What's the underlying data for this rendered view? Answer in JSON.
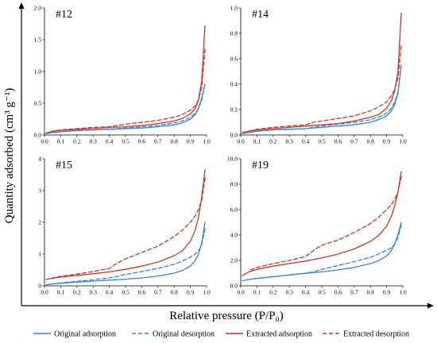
{
  "x_label": "Relative pressure (P/P₀)",
  "y_label": "Quantity adsorbed (cm³ g⁻¹)",
  "chart_data": [
    {
      "type": "line",
      "title": "#12",
      "xlim": [
        0,
        1.0
      ],
      "ylim": [
        0,
        2.0
      ],
      "xticks": [
        "0.0",
        "0.1",
        "0.2",
        "0.3",
        "0.4",
        "0.5",
        "0.6",
        "0.7",
        "0.8",
        "0.9",
        "1.0"
      ],
      "yticks": [
        "0.0",
        "0.5",
        "1.0",
        "1.5",
        "2.0"
      ],
      "series": [
        {
          "name": "Original adsorption",
          "color": "#3A7FD5",
          "dash": false,
          "x": [
            0.01,
            0.05,
            0.1,
            0.2,
            0.3,
            0.4,
            0.5,
            0.6,
            0.7,
            0.8,
            0.85,
            0.9,
            0.93,
            0.95,
            0.97,
            0.99
          ],
          "y": [
            0.02,
            0.04,
            0.05,
            0.07,
            0.08,
            0.09,
            0.1,
            0.11,
            0.13,
            0.16,
            0.19,
            0.25,
            0.32,
            0.42,
            0.58,
            0.8
          ]
        },
        {
          "name": "Original desorption",
          "color": "#3A7FD5",
          "dash": true,
          "x": [
            0.99,
            0.97,
            0.95,
            0.93,
            0.9,
            0.85,
            0.8,
            0.7,
            0.6,
            0.5,
            0.45,
            0.4,
            0.3,
            0.2,
            0.1,
            0.05
          ],
          "y": [
            0.8,
            0.55,
            0.42,
            0.34,
            0.28,
            0.22,
            0.19,
            0.15,
            0.13,
            0.11,
            0.1,
            0.09,
            0.08,
            0.07,
            0.05,
            0.04
          ]
        },
        {
          "name": "Extracted adsorption",
          "color": "#C0392B",
          "dash": false,
          "x": [
            0.01,
            0.05,
            0.1,
            0.2,
            0.3,
            0.4,
            0.5,
            0.6,
            0.7,
            0.8,
            0.85,
            0.9,
            0.93,
            0.95,
            0.97,
            0.99
          ],
          "y": [
            0.03,
            0.06,
            0.07,
            0.09,
            0.1,
            0.12,
            0.13,
            0.15,
            0.18,
            0.22,
            0.26,
            0.33,
            0.42,
            0.55,
            0.85,
            1.72
          ]
        },
        {
          "name": "Extracted desorption",
          "color": "#C0392B",
          "dash": true,
          "x": [
            0.99,
            0.97,
            0.95,
            0.93,
            0.9,
            0.85,
            0.8,
            0.7,
            0.6,
            0.5,
            0.45,
            0.4,
            0.3,
            0.2,
            0.1,
            0.05
          ],
          "y": [
            1.35,
            0.75,
            0.55,
            0.46,
            0.39,
            0.32,
            0.28,
            0.23,
            0.2,
            0.17,
            0.15,
            0.13,
            0.12,
            0.1,
            0.08,
            0.06
          ]
        }
      ]
    },
    {
      "type": "line",
      "title": "#14",
      "xlim": [
        0,
        1.0
      ],
      "ylim": [
        0,
        1.0
      ],
      "xticks": [
        "0.0",
        "0.1",
        "0.2",
        "0.3",
        "0.4",
        "0.5",
        "0.6",
        "0.7",
        "0.8",
        "0.9",
        "1.0"
      ],
      "yticks": [
        "0.0",
        "0.2",
        "0.4",
        "0.6",
        "0.8",
        "1.0"
      ],
      "series": [
        {
          "name": "Original adsorption",
          "color": "#3A7FD5",
          "dash": false,
          "x": [
            0.01,
            0.05,
            0.1,
            0.2,
            0.3,
            0.4,
            0.5,
            0.6,
            0.7,
            0.8,
            0.85,
            0.9,
            0.93,
            0.95,
            0.97,
            0.99
          ],
          "y": [
            0.01,
            0.02,
            0.03,
            0.04,
            0.045,
            0.05,
            0.06,
            0.07,
            0.08,
            0.1,
            0.12,
            0.15,
            0.19,
            0.24,
            0.33,
            0.55
          ]
        },
        {
          "name": "Original desorption",
          "color": "#3A7FD5",
          "dash": true,
          "x": [
            0.99,
            0.97,
            0.95,
            0.93,
            0.9,
            0.85,
            0.8,
            0.7,
            0.6,
            0.5,
            0.45,
            0.4,
            0.3,
            0.2,
            0.1,
            0.05
          ],
          "y": [
            0.55,
            0.34,
            0.26,
            0.21,
            0.17,
            0.14,
            0.12,
            0.1,
            0.085,
            0.07,
            0.06,
            0.05,
            0.045,
            0.04,
            0.03,
            0.02
          ]
        },
        {
          "name": "Extracted adsorption",
          "color": "#C0392B",
          "dash": false,
          "x": [
            0.01,
            0.05,
            0.1,
            0.2,
            0.3,
            0.4,
            0.5,
            0.6,
            0.7,
            0.8,
            0.85,
            0.9,
            0.93,
            0.95,
            0.97,
            0.99
          ],
          "y": [
            0.02,
            0.03,
            0.04,
            0.05,
            0.06,
            0.07,
            0.08,
            0.09,
            0.11,
            0.14,
            0.16,
            0.21,
            0.27,
            0.35,
            0.5,
            0.96
          ]
        },
        {
          "name": "Extracted desorption",
          "color": "#C0392B",
          "dash": true,
          "x": [
            0.99,
            0.97,
            0.95,
            0.93,
            0.9,
            0.85,
            0.8,
            0.7,
            0.6,
            0.5,
            0.45,
            0.4,
            0.3,
            0.2,
            0.1,
            0.05
          ],
          "y": [
            0.7,
            0.45,
            0.36,
            0.31,
            0.26,
            0.22,
            0.19,
            0.15,
            0.13,
            0.11,
            0.1,
            0.08,
            0.07,
            0.06,
            0.045,
            0.03
          ]
        }
      ]
    },
    {
      "type": "line",
      "title": "#15",
      "xlim": [
        0,
        1.0
      ],
      "ylim": [
        0,
        4
      ],
      "xticks": [
        "0.0",
        "0.1",
        "0.2",
        "0.3",
        "0.4",
        "0.5",
        "0.6",
        "0.7",
        "0.8",
        "0.9",
        "1.0"
      ],
      "yticks": [
        "0",
        "1",
        "2",
        "3",
        "4"
      ],
      "series": [
        {
          "name": "Original adsorption",
          "color": "#3A7FD5",
          "dash": false,
          "x": [
            0.01,
            0.05,
            0.1,
            0.2,
            0.3,
            0.4,
            0.5,
            0.6,
            0.7,
            0.8,
            0.85,
            0.9,
            0.93,
            0.95,
            0.97,
            0.99
          ],
          "y": [
            0.03,
            0.06,
            0.08,
            0.12,
            0.15,
            0.18,
            0.21,
            0.25,
            0.31,
            0.4,
            0.48,
            0.62,
            0.8,
            1.0,
            1.35,
            2.0
          ]
        },
        {
          "name": "Original desorption",
          "color": "#3A7FD5",
          "dash": true,
          "x": [
            0.99,
            0.97,
            0.95,
            0.93,
            0.9,
            0.85,
            0.8,
            0.7,
            0.6,
            0.5,
            0.45,
            0.4,
            0.3,
            0.2,
            0.1,
            0.05
          ],
          "y": [
            1.8,
            1.3,
            1.1,
            1.0,
            0.9,
            0.78,
            0.68,
            0.55,
            0.45,
            0.36,
            0.3,
            0.25,
            0.19,
            0.14,
            0.09,
            0.06
          ]
        },
        {
          "name": "Extracted adsorption",
          "color": "#C0392B",
          "dash": false,
          "x": [
            0.01,
            0.05,
            0.1,
            0.2,
            0.3,
            0.4,
            0.5,
            0.6,
            0.7,
            0.8,
            0.85,
            0.9,
            0.93,
            0.95,
            0.97,
            0.99
          ],
          "y": [
            0.2,
            0.24,
            0.28,
            0.33,
            0.38,
            0.44,
            0.52,
            0.62,
            0.75,
            0.95,
            1.1,
            1.4,
            1.75,
            2.15,
            2.8,
            3.65
          ]
        },
        {
          "name": "Extracted desorption",
          "color": "#C0392B",
          "dash": true,
          "x": [
            0.99,
            0.97,
            0.95,
            0.93,
            0.9,
            0.85,
            0.8,
            0.7,
            0.6,
            0.5,
            0.45,
            0.4,
            0.3,
            0.2,
            0.1,
            0.05
          ],
          "y": [
            3.4,
            2.7,
            2.4,
            2.2,
            2.0,
            1.75,
            1.55,
            1.25,
            1.05,
            0.85,
            0.72,
            0.55,
            0.45,
            0.37,
            0.3,
            0.25
          ]
        }
      ]
    },
    {
      "type": "line",
      "title": "#19",
      "xlim": [
        0,
        1.0
      ],
      "ylim": [
        0,
        10.0
      ],
      "xticks": [
        "0.0",
        "0.1",
        "0.2",
        "0.3",
        "0.4",
        "0.5",
        "0.6",
        "0.7",
        "0.8",
        "0.9",
        "1.0"
      ],
      "yticks": [
        "0.0",
        "2.0",
        "4.0",
        "6.0",
        "8.0",
        "10.0"
      ],
      "series": [
        {
          "name": "Original adsorption",
          "color": "#3A7FD5",
          "dash": false,
          "x": [
            0.01,
            0.05,
            0.1,
            0.2,
            0.3,
            0.4,
            0.5,
            0.6,
            0.7,
            0.8,
            0.85,
            0.9,
            0.93,
            0.95,
            0.97,
            0.99
          ],
          "y": [
            0.4,
            0.5,
            0.58,
            0.72,
            0.85,
            0.98,
            1.1,
            1.25,
            1.45,
            1.75,
            1.98,
            2.35,
            2.8,
            3.3,
            4.0,
            5.0
          ]
        },
        {
          "name": "Original desorption",
          "color": "#3A7FD5",
          "dash": true,
          "x": [
            0.99,
            0.97,
            0.95,
            0.93,
            0.9,
            0.85,
            0.8,
            0.7,
            0.6,
            0.5,
            0.45,
            0.4,
            0.3,
            0.2,
            0.1,
            0.05
          ],
          "y": [
            4.8,
            3.8,
            3.3,
            3.0,
            2.8,
            2.5,
            2.25,
            1.9,
            1.6,
            1.3,
            1.1,
            1.0,
            0.86,
            0.72,
            0.58,
            0.5
          ]
        },
        {
          "name": "Extracted adsorption",
          "color": "#C0392B",
          "dash": false,
          "x": [
            0.01,
            0.05,
            0.1,
            0.2,
            0.3,
            0.4,
            0.5,
            0.6,
            0.7,
            0.8,
            0.85,
            0.9,
            0.93,
            0.95,
            0.97,
            0.99
          ],
          "y": [
            0.8,
            1.1,
            1.3,
            1.55,
            1.75,
            1.95,
            2.2,
            2.5,
            2.9,
            3.5,
            3.95,
            4.7,
            5.5,
            6.3,
            7.4,
            9.0
          ]
        },
        {
          "name": "Extracted desorption",
          "color": "#C0392B",
          "dash": true,
          "x": [
            0.99,
            0.97,
            0.95,
            0.93,
            0.9,
            0.85,
            0.8,
            0.7,
            0.6,
            0.5,
            0.45,
            0.4,
            0.3,
            0.2,
            0.1,
            0.05
          ],
          "y": [
            8.6,
            7.4,
            6.8,
            6.4,
            6.0,
            5.4,
            4.9,
            4.2,
            3.6,
            3.2,
            2.8,
            2.3,
            2.0,
            1.75,
            1.45,
            1.2
          ]
        }
      ]
    }
  ],
  "legend": [
    {
      "label": "Original adsorption",
      "color": "#3A7FD5",
      "dash": false
    },
    {
      "label": "Original desorption",
      "color": "#3A7FD5",
      "dash": true
    },
    {
      "label": "Extracted adsorption",
      "color": "#C0392B",
      "dash": false
    },
    {
      "label": "Extracted desorption",
      "color": "#C0392B",
      "dash": true
    }
  ]
}
